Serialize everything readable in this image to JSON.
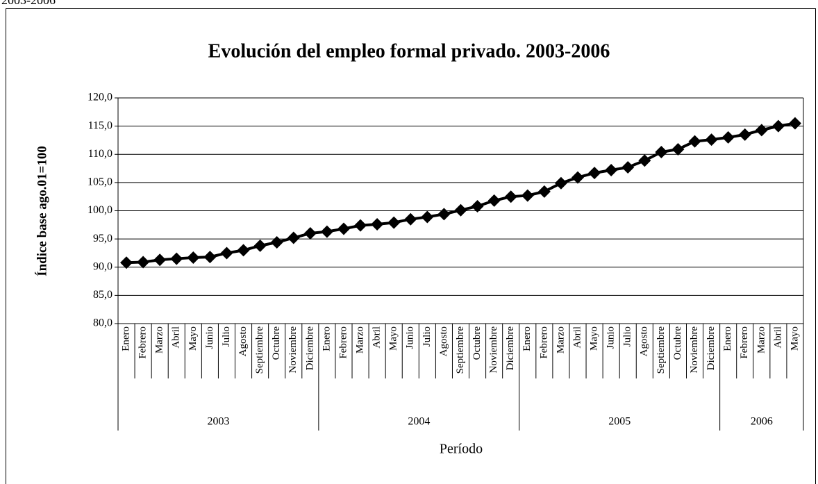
{
  "header": "2003-2006",
  "chart_data": {
    "type": "line",
    "title": "Evolución del empleo formal privado. 2003-2006",
    "y_label": "Índice base ago.01=100",
    "x_label": "Período",
    "groups": [
      {
        "label": "2003",
        "categories": [
          "Enero",
          "Febrero",
          "Marzo",
          "Abril",
          "Mayo",
          "Junio",
          "Julio",
          "Agosto",
          "Septiembre",
          "Octubre",
          "Noviembre",
          "Diciembre"
        ]
      },
      {
        "label": "2004",
        "categories": [
          "Enero",
          "Febrero",
          "Marzo",
          "Abril",
          "Mayo",
          "Junio",
          "Julio",
          "Agosto",
          "Septiembre",
          "Octubre",
          "Noviembre",
          "Diciembre"
        ]
      },
      {
        "label": "2005",
        "categories": [
          "Enero",
          "Febrero",
          "Marzo",
          "Abril",
          "Mayo",
          "Junio",
          "Julio",
          "Agosto",
          "Septiembre",
          "Octubre",
          "Noviembre",
          "Diciembre"
        ]
      },
      {
        "label": "2006",
        "categories": [
          "Enero",
          "Febrero",
          "Marzo",
          "Abril",
          "Mayo"
        ]
      }
    ],
    "values": [
      90.8,
      90.9,
      91.3,
      91.5,
      91.7,
      91.8,
      92.5,
      93.0,
      93.8,
      94.4,
      95.2,
      96.0,
      96.3,
      96.8,
      97.4,
      97.6,
      97.9,
      98.5,
      98.9,
      99.4,
      100.1,
      100.8,
      101.8,
      102.5,
      102.7,
      103.4,
      104.9,
      105.9,
      106.7,
      107.2,
      107.7,
      108.9,
      110.4,
      110.9,
      112.3,
      112.6,
      113.0,
      113.5,
      114.3,
      115.0,
      115.5
    ],
    "color": "#000000",
    "marker": "diamond",
    "ylim": [
      80,
      120
    ],
    "yticks": [
      {
        "value": 80,
        "label": "80,0"
      },
      {
        "value": 85,
        "label": "85,0"
      },
      {
        "value": 90,
        "label": "90,0"
      },
      {
        "value": 95,
        "label": "95,0"
      },
      {
        "value": 100,
        "label": "100,0"
      },
      {
        "value": 105,
        "label": "105,0"
      },
      {
        "value": 110,
        "label": "110,0"
      },
      {
        "value": 115,
        "label": "115,0"
      },
      {
        "value": 120,
        "label": "120,0"
      }
    ],
    "grid": true
  }
}
